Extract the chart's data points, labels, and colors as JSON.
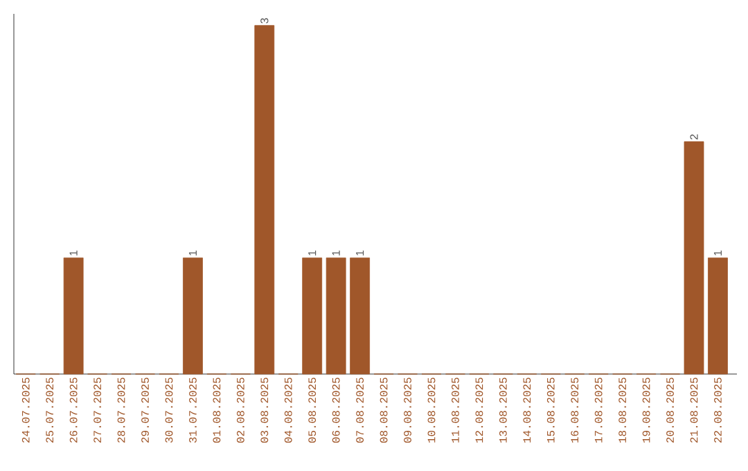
{
  "chart_data": {
    "type": "bar",
    "categories": [
      "24.07.2025",
      "25.07.2025",
      "26.07.2025",
      "27.07.2025",
      "28.07.2025",
      "29.07.2025",
      "30.07.2025",
      "31.07.2025",
      "01.08.2025",
      "02.08.2025",
      "03.08.2025",
      "04.08.2025",
      "05.08.2025",
      "06.08.2025",
      "07.08.2025",
      "08.08.2025",
      "09.08.2025",
      "10.08.2025",
      "11.08.2025",
      "12.08.2025",
      "13.08.2025",
      "14.08.2025",
      "15.08.2025",
      "16.08.2025",
      "17.08.2025",
      "18.08.2025",
      "19.08.2025",
      "20.08.2025",
      "21.08.2025",
      "22.08.2025"
    ],
    "values": [
      0,
      0,
      1,
      0,
      0,
      0,
      0,
      1,
      0,
      0,
      3,
      0,
      1,
      1,
      1,
      0,
      0,
      0,
      0,
      0,
      0,
      0,
      0,
      0,
      0,
      0,
      0,
      0,
      2,
      1
    ],
    "value_labels": [
      null,
      null,
      "1",
      null,
      null,
      null,
      null,
      "1",
      null,
      null,
      "3",
      null,
      "1",
      "1",
      "1",
      null,
      null,
      null,
      null,
      null,
      null,
      null,
      null,
      null,
      null,
      null,
      null,
      null,
      "2",
      "1"
    ],
    "color": "#a0572a",
    "ylim": [
      0,
      3.1
    ]
  }
}
